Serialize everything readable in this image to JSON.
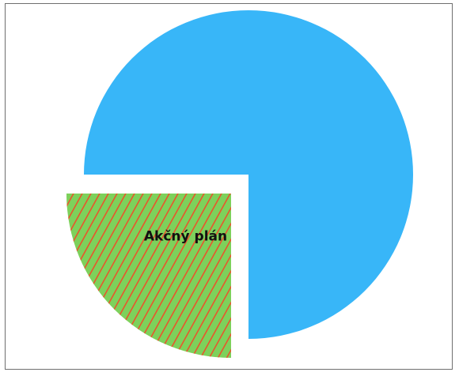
{
  "chart_data": {
    "type": "pie",
    "title": "",
    "slices": [
      {
        "label": "",
        "value": 75,
        "color": "#38b6f8",
        "exploded": false
      },
      {
        "label": "Akčný plán",
        "value": 25,
        "color": "#7dd15b",
        "pattern": "zigzag-hatch",
        "pattern_color": "#e8562c",
        "exploded": true
      }
    ],
    "legend": "none"
  }
}
